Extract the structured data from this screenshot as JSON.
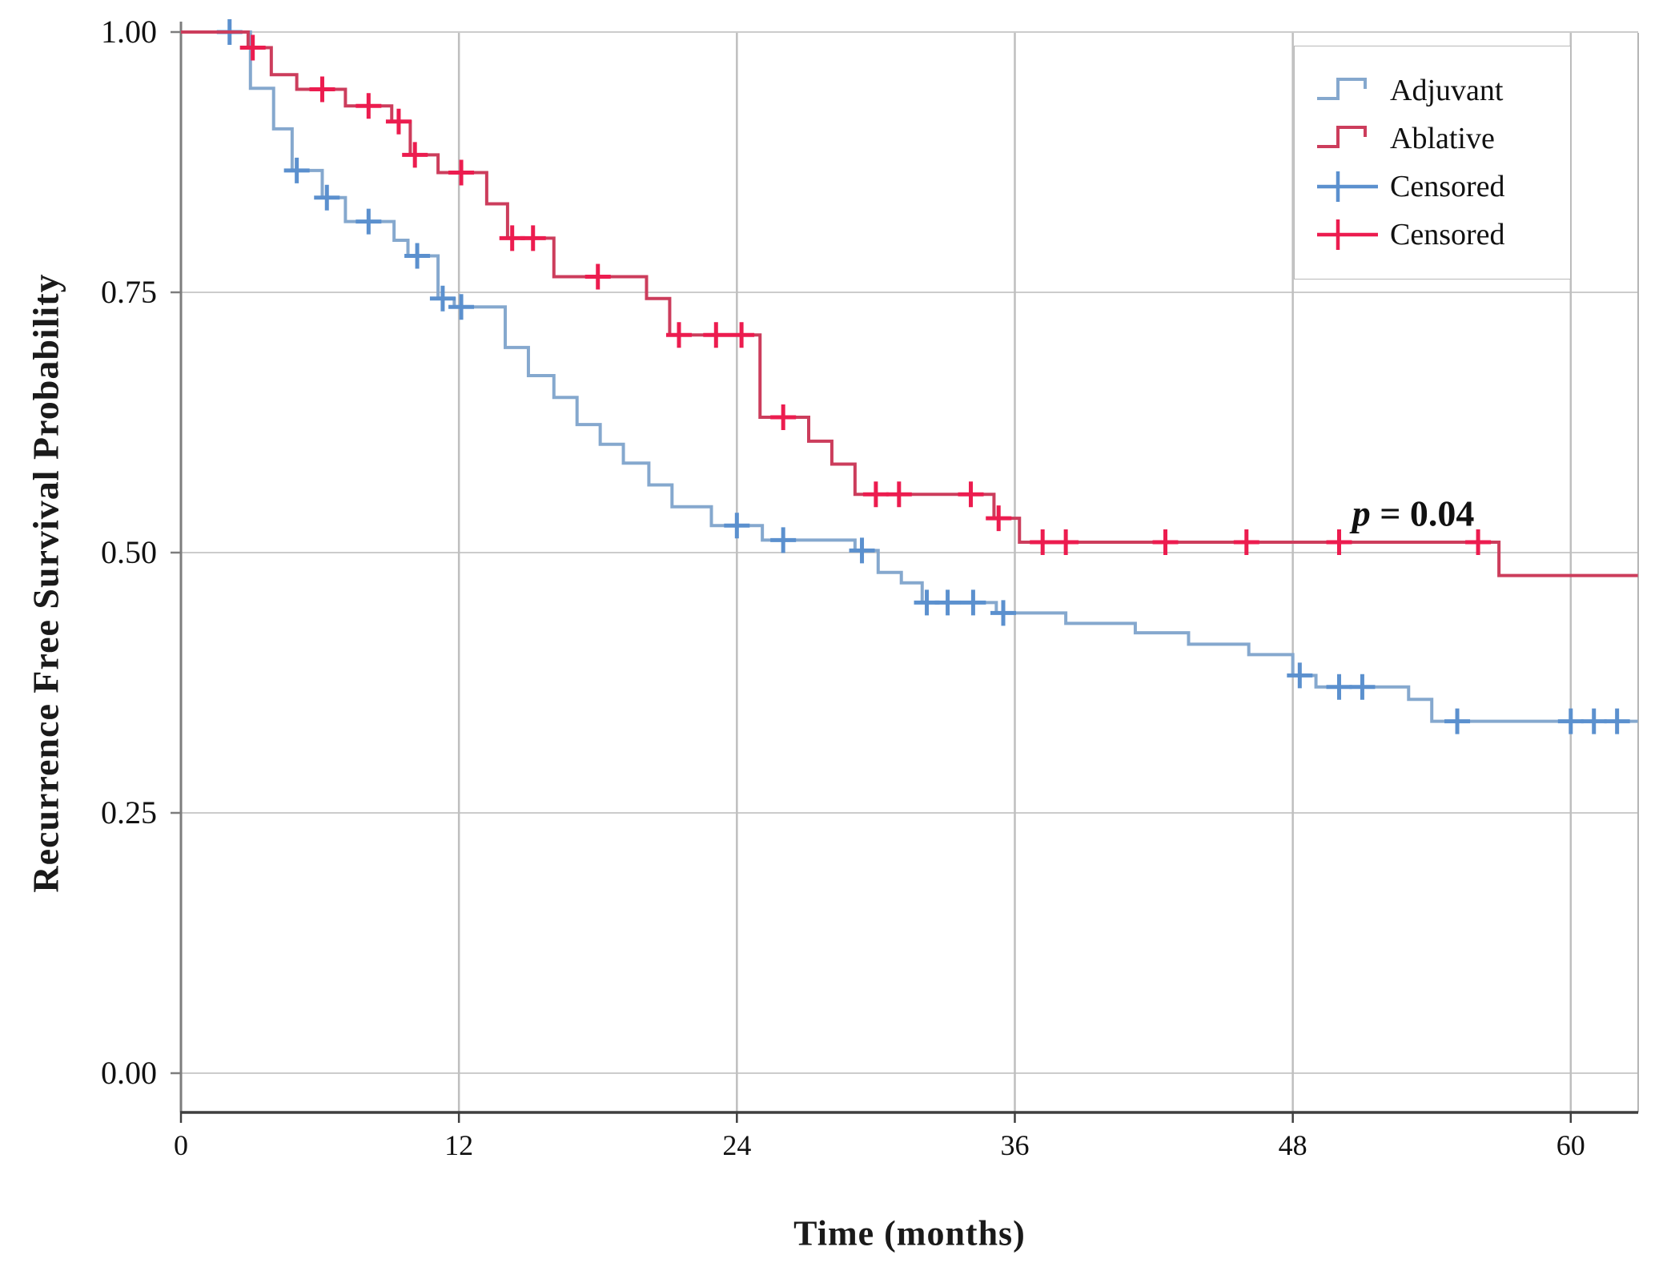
{
  "chart_data": {
    "type": "line",
    "subtype": "kaplan_meier_step",
    "title": "",
    "xlabel": "Time (months)",
    "ylabel": "Recurrence Free Survival Probability",
    "xlim": [
      0,
      62.9
    ],
    "ylim": [
      0,
      1.0
    ],
    "grid": true,
    "legend_position": "top-right",
    "xticks": [
      {
        "value": 0,
        "label": "0"
      },
      {
        "value": 12,
        "label": "12"
      },
      {
        "value": 24,
        "label": "24"
      },
      {
        "value": 36,
        "label": "36"
      },
      {
        "value": 48,
        "label": "48"
      },
      {
        "value": 60,
        "label": "60"
      }
    ],
    "yticks": [
      {
        "value": 1.0,
        "label": "1.00"
      },
      {
        "value": 0.75,
        "label": "0.75"
      },
      {
        "value": 0.5,
        "label": "0.50"
      },
      {
        "value": 0.25,
        "label": "0.25"
      },
      {
        "value": 0.0,
        "label": "0.00"
      }
    ],
    "annotation": {
      "italic": "p",
      "text": " = 0.04",
      "x_months": 53.2,
      "y_prob": 0.538
    },
    "colors": {
      "adjuvant_line": "#85A8CE",
      "adjuvant_censor": "#5B90CE",
      "ablative_line": "#CC3D5C",
      "ablative_censor": "#EC1C4F",
      "grid_h": "#cccccc",
      "grid_v": "#bfbfbf",
      "axis_left": "#7d7d7d",
      "axis_bottom": "#3f3f3f",
      "frame_light": "#b5b5b5"
    },
    "legend": {
      "entries": [
        {
          "label": "Adjuvant",
          "swatch": "step",
          "color_key": "adjuvant_line"
        },
        {
          "label": "Ablative",
          "swatch": "step",
          "color_key": "ablative_line"
        },
        {
          "label": "Censored",
          "swatch": "censor",
          "color_key": "adjuvant_censor"
        },
        {
          "label": "Censored",
          "swatch": "censor",
          "color_key": "ablative_censor"
        }
      ]
    },
    "series": [
      {
        "name": "Adjuvant",
        "color_key": "adjuvant_line",
        "censor_color_key": "adjuvant_censor",
        "end_time": 62.9,
        "steps": [
          [
            0,
            1.0
          ],
          [
            3.0,
            0.946
          ],
          [
            4.0,
            0.907
          ],
          [
            4.8,
            0.867
          ],
          [
            6.1,
            0.841
          ],
          [
            7.1,
            0.818
          ],
          [
            9.2,
            0.8
          ],
          [
            9.8,
            0.785
          ],
          [
            11.1,
            0.744
          ],
          [
            11.8,
            0.736
          ],
          [
            14.0,
            0.697
          ],
          [
            15.0,
            0.67
          ],
          [
            16.1,
            0.649
          ],
          [
            17.1,
            0.623
          ],
          [
            18.1,
            0.604
          ],
          [
            19.1,
            0.586
          ],
          [
            20.2,
            0.565
          ],
          [
            21.2,
            0.544
          ],
          [
            22.9,
            0.526
          ],
          [
            25.1,
            0.512
          ],
          [
            29.1,
            0.502
          ],
          [
            30.1,
            0.481
          ],
          [
            31.1,
            0.471
          ],
          [
            32.0,
            0.452
          ],
          [
            35.2,
            0.442
          ],
          [
            38.2,
            0.432
          ],
          [
            41.2,
            0.423
          ],
          [
            43.5,
            0.412
          ],
          [
            46.1,
            0.402
          ],
          [
            48.0,
            0.382
          ],
          [
            49.0,
            0.371
          ],
          [
            53.0,
            0.359
          ],
          [
            54.0,
            0.338
          ]
        ],
        "censored": [
          [
            2.1,
            1.0
          ],
          [
            5.0,
            0.867
          ],
          [
            6.3,
            0.841
          ],
          [
            8.1,
            0.818
          ],
          [
            10.2,
            0.785
          ],
          [
            11.3,
            0.744
          ],
          [
            12.1,
            0.736
          ],
          [
            24.0,
            0.526
          ],
          [
            26.0,
            0.512
          ],
          [
            29.4,
            0.502
          ],
          [
            32.2,
            0.452
          ],
          [
            33.1,
            0.452
          ],
          [
            34.2,
            0.452
          ],
          [
            35.5,
            0.442
          ],
          [
            48.3,
            0.382
          ],
          [
            50.0,
            0.371
          ],
          [
            51.0,
            0.371
          ],
          [
            55.1,
            0.338
          ],
          [
            60.0,
            0.338
          ],
          [
            61.0,
            0.338
          ],
          [
            62.0,
            0.338
          ]
        ]
      },
      {
        "name": "Ablative",
        "color_key": "ablative_line",
        "censor_color_key": "ablative_censor",
        "end_time": 62.9,
        "steps": [
          [
            0,
            1.0
          ],
          [
            2.9,
            0.985
          ],
          [
            3.9,
            0.959
          ],
          [
            5.0,
            0.945
          ],
          [
            7.1,
            0.929
          ],
          [
            9.1,
            0.914
          ],
          [
            9.9,
            0.882
          ],
          [
            11.1,
            0.865
          ],
          [
            13.2,
            0.835
          ],
          [
            14.1,
            0.802
          ],
          [
            16.1,
            0.765
          ],
          [
            20.1,
            0.744
          ],
          [
            21.1,
            0.709
          ],
          [
            25.0,
            0.63
          ],
          [
            27.1,
            0.607
          ],
          [
            28.1,
            0.585
          ],
          [
            29.1,
            0.556
          ],
          [
            35.1,
            0.533
          ],
          [
            36.2,
            0.51
          ],
          [
            56.9,
            0.478
          ]
        ],
        "censored": [
          [
            3.1,
            0.985
          ],
          [
            6.1,
            0.945
          ],
          [
            8.1,
            0.929
          ],
          [
            9.4,
            0.914
          ],
          [
            10.1,
            0.882
          ],
          [
            12.1,
            0.865
          ],
          [
            14.3,
            0.802
          ],
          [
            15.2,
            0.802
          ],
          [
            18.0,
            0.765
          ],
          [
            21.5,
            0.709
          ],
          [
            23.1,
            0.709
          ],
          [
            24.2,
            0.709
          ],
          [
            26.0,
            0.63
          ],
          [
            30.0,
            0.556
          ],
          [
            31.0,
            0.556
          ],
          [
            34.1,
            0.556
          ],
          [
            35.3,
            0.533
          ],
          [
            37.2,
            0.51
          ],
          [
            38.2,
            0.51
          ],
          [
            42.5,
            0.51
          ],
          [
            46.0,
            0.51
          ],
          [
            50.0,
            0.51
          ],
          [
            56.0,
            0.51
          ]
        ]
      }
    ]
  }
}
